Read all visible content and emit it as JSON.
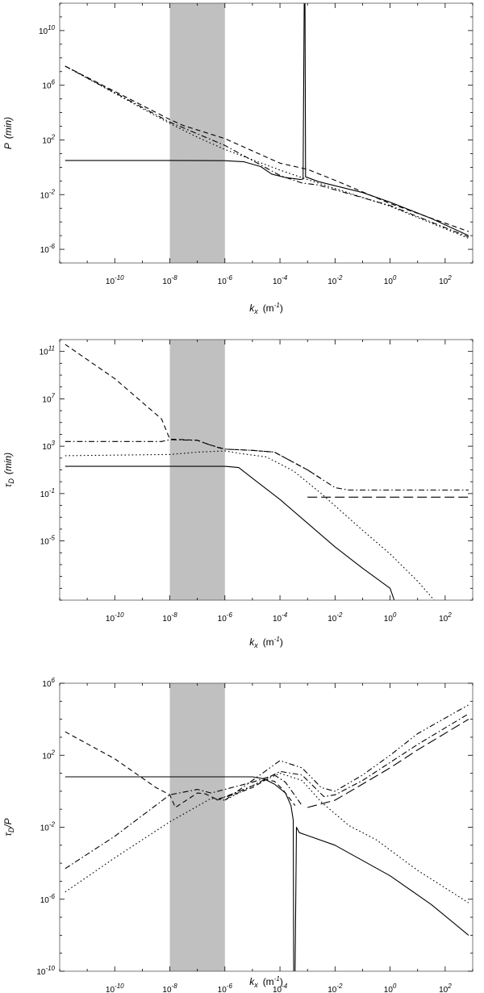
{
  "chart_data": [
    {
      "type": "line",
      "xlabel": {
        "base": "k",
        "sub": "x",
        "unit": "(m",
        "exp": "-1",
        "close": ")"
      },
      "ylabel": {
        "base": "P",
        "sub": "",
        "unit": "(min)"
      },
      "xscale": "log",
      "yscale": "log",
      "xlim": [
        -12,
        3
      ],
      "ylim": [
        -7,
        12
      ],
      "xticks": [
        {
          "exp": -10,
          "label_base": "10",
          "label_exp": "-10"
        },
        {
          "exp": -8,
          "label_base": "10",
          "label_exp": "-8"
        },
        {
          "exp": -6,
          "label_base": "10",
          "label_exp": "-6"
        },
        {
          "exp": -4,
          "label_base": "10",
          "label_exp": "-4"
        },
        {
          "exp": -2,
          "label_base": "10",
          "label_exp": "-2"
        },
        {
          "exp": 0,
          "label_base": "10",
          "label_exp": "0"
        },
        {
          "exp": 2,
          "label_base": "10",
          "label_exp": "2"
        }
      ],
      "yticks": [
        {
          "exp": -6,
          "label_base": "10",
          "label_exp": "-6"
        },
        {
          "exp": -2,
          "label_base": "10",
          "label_exp": "-2"
        },
        {
          "exp": 2,
          "label_base": "10",
          "label_exp": "2"
        },
        {
          "exp": 6,
          "label_base": "10",
          "label_exp": "6"
        },
        {
          "exp": 10,
          "label_base": "10",
          "label_exp": "10"
        }
      ],
      "shaded_region": {
        "x": [
          -8,
          -6
        ],
        "color": "#c0c0c0"
      },
      "series": [
        {
          "style": "solid",
          "points": [
            [
              -11.8,
              0.5
            ],
            [
              -8,
              0.5
            ],
            [
              -6,
              0.48
            ],
            [
              -5.3,
              0.4
            ],
            [
              -4.7,
              0.05
            ],
            [
              -4.3,
              -0.5
            ],
            [
              -3.8,
              -0.75
            ],
            [
              -3.25,
              -0.9
            ],
            [
              -3.16,
              -0.85
            ],
            [
              -3.12,
              12
            ],
            [
              -3.09,
              12
            ],
            [
              -3.07,
              -0.7
            ],
            [
              -2.6,
              -1.05
            ],
            [
              -1,
              -1.85
            ],
            [
              0,
              -2.55
            ],
            [
              1.5,
              -3.75
            ],
            [
              2.85,
              -5
            ]
          ]
        },
        {
          "style": "dashed",
          "points": [
            [
              -11.8,
              7.4
            ],
            [
              -8,
              3.5
            ],
            [
              -7.5,
              3.05
            ],
            [
              -6,
              2.1
            ],
            [
              -4,
              0.3
            ],
            [
              -3,
              -0.15
            ],
            [
              -2,
              -0.95
            ],
            [
              0,
              -2.65
            ],
            [
              2.85,
              -4.7
            ]
          ]
        },
        {
          "style": "dotted",
          "points": [
            [
              -11.8,
              7.4
            ],
            [
              -8,
              3.2
            ],
            [
              -7,
              2.2
            ],
            [
              -6,
              1.3
            ],
            [
              -4,
              -0.2
            ],
            [
              -3,
              -0.9
            ],
            [
              0,
              -2.85
            ],
            [
              2.85,
              -5.2
            ]
          ]
        },
        {
          "style": "dashdot",
          "points": [
            [
              -11.8,
              7.4
            ],
            [
              -8,
              3.3
            ],
            [
              -6,
              1.6
            ],
            [
              -5,
              0.5
            ],
            [
              -4,
              -0.6
            ],
            [
              -3.2,
              -1.15
            ],
            [
              -2.6,
              -1.3
            ],
            [
              0,
              -2.8
            ],
            [
              2.85,
              -5.1
            ]
          ]
        }
      ]
    },
    {
      "type": "line",
      "xlabel": {
        "base": "k",
        "sub": "x",
        "unit": "(m",
        "exp": "-1",
        "close": ")"
      },
      "ylabel": {
        "base": "τ",
        "sub": "D",
        "unit": "(min)"
      },
      "xscale": "log",
      "yscale": "log",
      "xlim": [
        -12,
        3
      ],
      "ylim": [
        -10,
        12
      ],
      "xticks": [
        {
          "exp": -10,
          "label_base": "10",
          "label_exp": "-10"
        },
        {
          "exp": -8,
          "label_base": "10",
          "label_exp": "-8"
        },
        {
          "exp": -6,
          "label_base": "10",
          "label_exp": "-6"
        },
        {
          "exp": -4,
          "label_base": "10",
          "label_exp": "-4"
        },
        {
          "exp": -2,
          "label_base": "10",
          "label_exp": "-2"
        },
        {
          "exp": 0,
          "label_base": "10",
          "label_exp": "0"
        },
        {
          "exp": 2,
          "label_base": "10",
          "label_exp": "2"
        }
      ],
      "yticks": [
        {
          "exp": -5,
          "label_base": "10",
          "label_exp": "-5"
        },
        {
          "exp": -1,
          "label_base": "10",
          "label_exp": "-1"
        },
        {
          "exp": 3,
          "label_base": "10",
          "label_exp": "3"
        },
        {
          "exp": 7,
          "label_base": "10",
          "label_exp": "7"
        },
        {
          "exp": 11,
          "label_base": "10",
          "label_exp": "11"
        }
      ],
      "shaded_region": {
        "x": [
          -8,
          -6
        ],
        "color": "#c0c0c0"
      },
      "series": [
        {
          "style": "solid",
          "points": [
            [
              -11.8,
              1.3
            ],
            [
              -6,
              1.3
            ],
            [
              -5.5,
              1.2
            ],
            [
              -5,
              0.3
            ],
            [
              -4,
              -1.5
            ],
            [
              -3,
              -3.5
            ],
            [
              -2,
              -5.5
            ],
            [
              -1,
              -7.3
            ],
            [
              0,
              -9
            ],
            [
              0.15,
              -10
            ]
          ]
        },
        {
          "style": "dotted",
          "points": [
            [
              -11.8,
              2.2
            ],
            [
              -8,
              2.3
            ],
            [
              -7,
              2.5
            ],
            [
              -6,
              2.6
            ],
            [
              -5.5,
              2.4
            ],
            [
              -4.5,
              2.1
            ],
            [
              -3.5,
              0.9
            ],
            [
              -2.5,
              -1
            ],
            [
              -1,
              -4.1
            ],
            [
              0,
              -6.1
            ],
            [
              1,
              -8.4
            ],
            [
              1.6,
              -10
            ]
          ]
        },
        {
          "style": "dashdot",
          "points": [
            [
              -11.8,
              3.4
            ],
            [
              -8.3,
              3.4
            ],
            [
              -8,
              3.55
            ],
            [
              -7,
              3.5
            ],
            [
              -6.6,
              3.15
            ],
            [
              -6.2,
              2.85
            ],
            [
              -6,
              2.75
            ],
            [
              -5,
              2.65
            ],
            [
              -4.2,
              2.5
            ],
            [
              -3,
              1
            ],
            [
              -2,
              -0.5
            ],
            [
              -1.5,
              -0.7
            ],
            [
              0,
              -0.7
            ],
            [
              2.85,
              -0.7
            ]
          ]
        },
        {
          "style": "dashed",
          "points": [
            [
              -11.8,
              11.6
            ],
            [
              -10,
              8.7
            ],
            [
              -8.3,
              5.3
            ],
            [
              -8,
              3.6
            ],
            [
              -7,
              3.5
            ],
            [
              -6.6,
              3.15
            ],
            [
              -6,
              2.75
            ],
            [
              -5,
              2.65
            ],
            [
              -4.2,
              2.5
            ],
            [
              -3,
              1
            ],
            [
              -2.4,
              0.1
            ]
          ]
        },
        {
          "style": "longdash",
          "points": [
            [
              -3,
              -1.3
            ],
            [
              2.85,
              -1.3
            ]
          ]
        }
      ]
    },
    {
      "type": "line",
      "xlabel": {
        "base": "k",
        "sub": "x",
        "unit": "(m",
        "exp": "-1",
        "close": ")"
      },
      "ylabel": {
        "base": "τ",
        "sub": "D",
        "unit": "/P"
      },
      "xscale": "log",
      "yscale": "log",
      "xlim": [
        -12,
        3
      ],
      "ylim": [
        -10,
        6
      ],
      "xticks": [
        {
          "exp": -10,
          "label_base": "10",
          "label_exp": "-10"
        },
        {
          "exp": -8,
          "label_base": "10",
          "label_exp": "-8"
        },
        {
          "exp": -6,
          "label_base": "10",
          "label_exp": "-6"
        },
        {
          "exp": -4,
          "label_base": "10",
          "label_exp": "-4"
        },
        {
          "exp": -2,
          "label_base": "10",
          "label_exp": "-2"
        },
        {
          "exp": 0,
          "label_base": "10",
          "label_exp": "0"
        },
        {
          "exp": 2,
          "label_base": "10",
          "label_exp": "2"
        }
      ],
      "yticks": [
        {
          "exp": -10,
          "label_base": "10",
          "label_exp": "-10"
        },
        {
          "exp": -6,
          "label_base": "10",
          "label_exp": "-6"
        },
        {
          "exp": -2,
          "label_base": "10",
          "label_exp": "-2"
        },
        {
          "exp": 2,
          "label_base": "10",
          "label_exp": "2"
        },
        {
          "exp": 6,
          "label_base": "10",
          "label_exp": "6"
        }
      ],
      "shaded_region": {
        "x": [
          -8,
          -6
        ],
        "color": "#c0c0c0"
      },
      "series": [
        {
          "style": "solid",
          "points": [
            [
              -11.8,
              0.8
            ],
            [
              -5,
              0.8
            ],
            [
              -4.6,
              0.7
            ],
            [
              -4.2,
              0.4
            ],
            [
              -3.8,
              -0.1
            ],
            [
              -3.6,
              -0.8
            ],
            [
              -3.52,
              -1.6
            ],
            [
              -3.5,
              -10
            ],
            [
              -3.45,
              -10
            ],
            [
              -3.4,
              -2
            ],
            [
              -3.3,
              -2.3
            ],
            [
              -2,
              -3
            ],
            [
              0,
              -4.7
            ],
            [
              1.5,
              -6.3
            ],
            [
              2.85,
              -8
            ]
          ]
        },
        {
          "style": "dashed",
          "points": [
            [
              -11.8,
              3.3
            ],
            [
              -10,
              1.8
            ],
            [
              -8.5,
              0.2
            ],
            [
              -8,
              -0.2
            ],
            [
              -7.8,
              -0.9
            ],
            [
              -7.5,
              -0.6
            ],
            [
              -7,
              -0.1
            ],
            [
              -6.7,
              -0.15
            ],
            [
              -6.3,
              -0.45
            ],
            [
              -5.7,
              -0.2
            ],
            [
              -5,
              0.2
            ],
            [
              -4.5,
              0.65
            ],
            [
              -4.2,
              0.55
            ],
            [
              -3.9,
              0.1
            ],
            [
              -3.6,
              -0.5
            ],
            [
              -3.45,
              -0.8
            ]
          ]
        },
        {
          "style": "dashdot",
          "points": [
            [
              -11.8,
              -4.3
            ],
            [
              -10,
              -2.5
            ],
            [
              -8,
              -0.2
            ],
            [
              -7,
              0.1
            ],
            [
              -6.5,
              -0.1
            ],
            [
              -6,
              0.1
            ],
            [
              -5,
              0.5
            ],
            [
              -4.2,
              0.9
            ],
            [
              -3.8,
              0.5
            ],
            [
              -3.2,
              -0.8
            ]
          ]
        },
        {
          "style": "dotted",
          "points": [
            [
              -11.8,
              -5.6
            ],
            [
              -10,
              -3.7
            ],
            [
              -8,
              -1.7
            ],
            [
              -6.5,
              -0.4
            ],
            [
              -6,
              -0.5
            ],
            [
              -5,
              0.3
            ],
            [
              -4,
              1
            ],
            [
              -3.2,
              0.6
            ],
            [
              -2.5,
              -0.6
            ],
            [
              -1.5,
              -1.9
            ],
            [
              -0.5,
              -2.7
            ],
            [
              1,
              -4.4
            ],
            [
              2.85,
              -6.2
            ]
          ]
        },
        {
          "style": "dashdotdot",
          "points": [
            [
              -6,
              -0.5
            ],
            [
              -5,
              0.6
            ],
            [
              -4,
              1.7
            ],
            [
              -3.2,
              1.3
            ],
            [
              -2.5,
              0.2
            ],
            [
              -2,
              0
            ],
            [
              -1,
              0.9
            ],
            [
              0,
              2
            ],
            [
              1,
              3.2
            ],
            [
              2.85,
              4.8
            ]
          ]
        },
        {
          "style": "dashdot",
          "points": [
            [
              -6.3,
              -0.5
            ],
            [
              -5,
              0.3
            ],
            [
              -4,
              1.1
            ],
            [
              -3.2,
              0.9
            ],
            [
              -2.4,
              -0.3
            ],
            [
              -2,
              -0.2
            ],
            [
              -1,
              0.6
            ],
            [
              0,
              1.6
            ],
            [
              1,
              2.6
            ],
            [
              2.85,
              4.3
            ]
          ]
        },
        {
          "style": "longdash",
          "points": [
            [
              -3,
              -0.9
            ],
            [
              -2,
              -0.5
            ],
            [
              -1,
              0.4
            ],
            [
              0,
              1.3
            ],
            [
              1,
              2.3
            ],
            [
              2.85,
              4
            ]
          ]
        }
      ]
    }
  ]
}
